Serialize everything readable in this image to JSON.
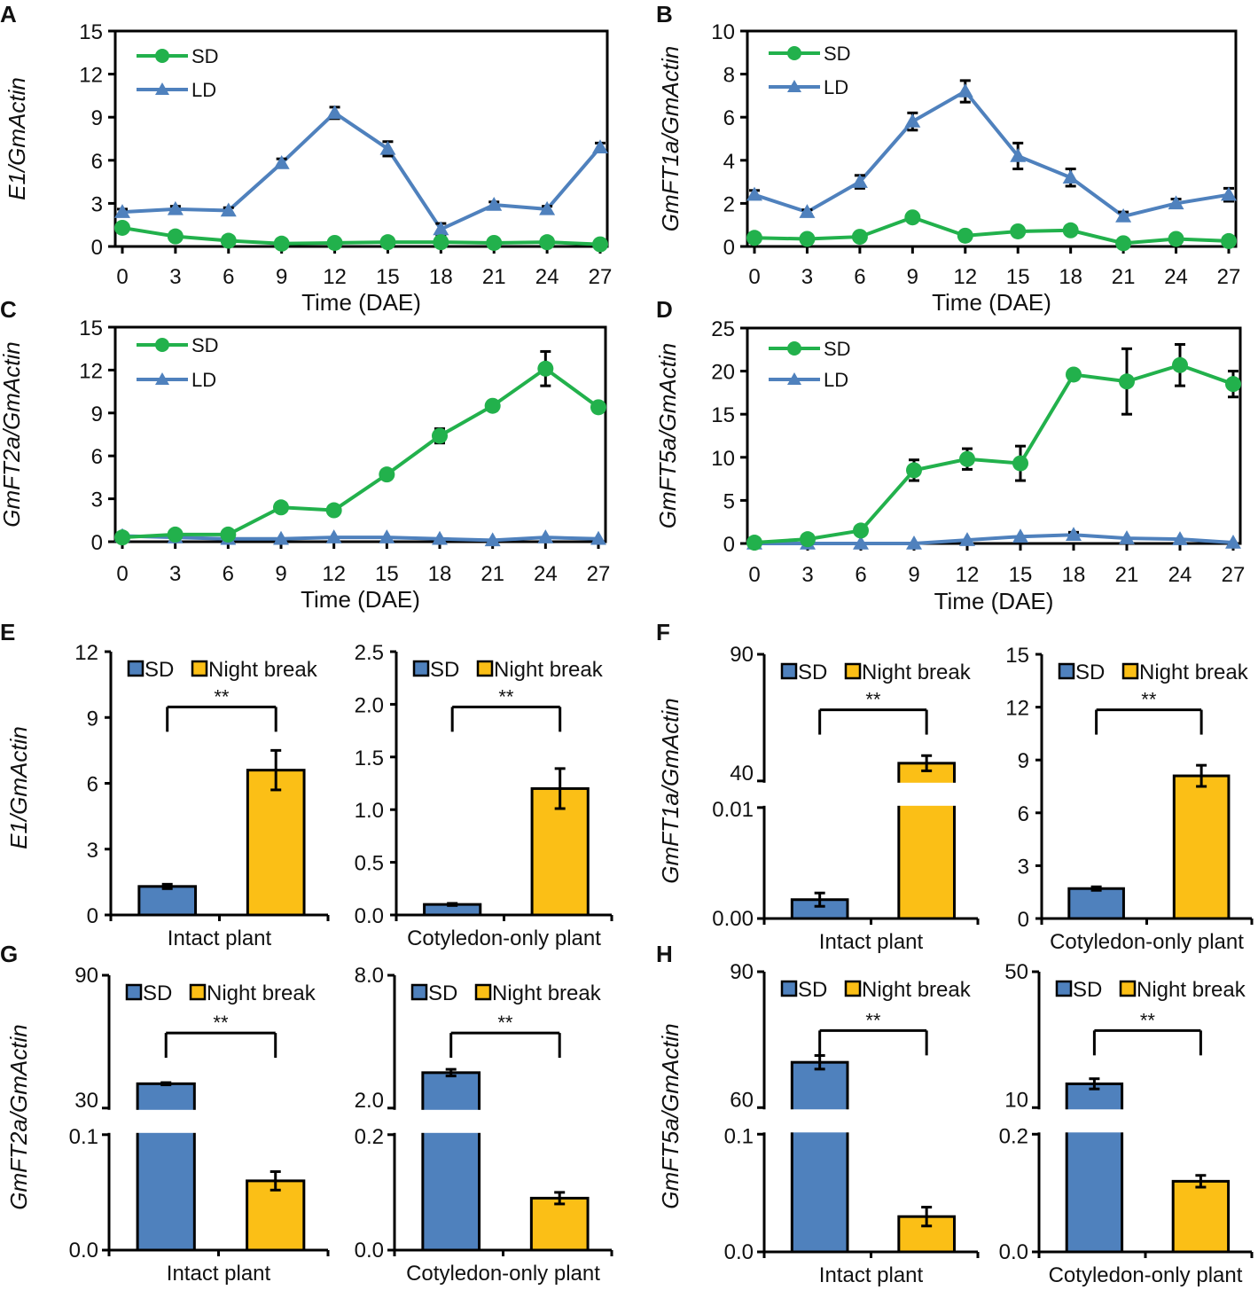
{
  "colors": {
    "sd_line": "#22b14c",
    "ld_line": "#4f81bd",
    "sd_bar": "#4f81bd",
    "nb_bar": "#fbbf16",
    "axis": "#000000"
  },
  "chart_data": [
    {
      "panel_letter": "A",
      "type": "line",
      "ylabel": "E1/GmActin",
      "xlabel": "Time (DAE)",
      "x": [
        0,
        3,
        6,
        9,
        12,
        15,
        18,
        21,
        24,
        27
      ],
      "ylim": [
        0,
        15
      ],
      "yticks": [
        "0",
        "3",
        "6",
        "9",
        "12",
        "15"
      ],
      "xticks": [
        "0",
        "3",
        "6",
        "9",
        "12",
        "15",
        "18",
        "21",
        "24",
        "27"
      ],
      "series": [
        {
          "name": "SD",
          "marker": "circle",
          "values": [
            1.3,
            0.7,
            0.4,
            0.2,
            0.25,
            0.3,
            0.3,
            0.25,
            0.3,
            0.15
          ],
          "errors": [
            0,
            0,
            0,
            0,
            0,
            0,
            0,
            0,
            0,
            0
          ]
        },
        {
          "name": "LD",
          "marker": "triangle",
          "values": [
            2.4,
            2.6,
            2.5,
            5.8,
            9.3,
            6.8,
            1.2,
            2.9,
            2.6,
            6.9
          ],
          "errors": [
            0.2,
            0.2,
            0.2,
            0.3,
            0.4,
            0.5,
            0.4,
            0.2,
            0.2,
            0.3
          ]
        }
      ]
    },
    {
      "panel_letter": "B",
      "type": "line",
      "ylabel": "GmFT1a/GmActin",
      "xlabel": "Time (DAE)",
      "x": [
        0,
        3,
        6,
        9,
        12,
        15,
        18,
        21,
        24,
        27
      ],
      "ylim": [
        0,
        10
      ],
      "yticks": [
        "0",
        "2",
        "4",
        "6",
        "8",
        "10"
      ],
      "xticks": [
        "0",
        "3",
        "6",
        "9",
        "12",
        "15",
        "18",
        "21",
        "24",
        "27"
      ],
      "series": [
        {
          "name": "SD",
          "marker": "circle",
          "values": [
            0.4,
            0.35,
            0.45,
            1.35,
            0.5,
            0.7,
            0.75,
            0.15,
            0.35,
            0.25
          ],
          "errors": [
            0,
            0,
            0,
            0,
            0,
            0,
            0,
            0,
            0,
            0
          ]
        },
        {
          "name": "LD",
          "marker": "triangle",
          "values": [
            2.4,
            1.6,
            3.0,
            5.8,
            7.2,
            4.2,
            3.2,
            1.4,
            2.0,
            2.4
          ],
          "errors": [
            0.2,
            0.1,
            0.3,
            0.4,
            0.5,
            0.6,
            0.4,
            0.2,
            0.2,
            0.3
          ]
        }
      ]
    },
    {
      "panel_letter": "C",
      "type": "line",
      "ylabel": "GmFT2a/GmActin",
      "xlabel": "Time (DAE)",
      "x": [
        0,
        3,
        6,
        9,
        12,
        15,
        18,
        21,
        24,
        27
      ],
      "ylim": [
        0,
        15
      ],
      "yticks": [
        "0",
        "3",
        "6",
        "9",
        "12",
        "15"
      ],
      "xticks": [
        "0",
        "3",
        "6",
        "9",
        "12",
        "15",
        "18",
        "21",
        "24",
        "27"
      ],
      "series": [
        {
          "name": "SD",
          "marker": "circle",
          "values": [
            0.3,
            0.5,
            0.5,
            2.4,
            2.2,
            4.7,
            7.4,
            9.5,
            12.1,
            9.4
          ],
          "errors": [
            0,
            0,
            0,
            0,
            0,
            0,
            0.5,
            0,
            1.2,
            0
          ]
        },
        {
          "name": "LD",
          "marker": "triangle",
          "values": [
            0.4,
            0.3,
            0.2,
            0.2,
            0.3,
            0.3,
            0.2,
            0.1,
            0.3,
            0.2
          ],
          "errors": [
            0,
            0,
            0,
            0,
            0,
            0,
            0,
            0,
            0,
            0
          ]
        }
      ]
    },
    {
      "panel_letter": "D",
      "type": "line",
      "ylabel": "GmFT5a/GmActin",
      "xlabel": "Time (DAE)",
      "x": [
        0,
        3,
        6,
        9,
        12,
        15,
        18,
        21,
        24,
        27
      ],
      "ylim": [
        0,
        25
      ],
      "yticks": [
        "0",
        "5",
        "10",
        "15",
        "20",
        "25"
      ],
      "xticks": [
        "0",
        "3",
        "6",
        "9",
        "12",
        "15",
        "18",
        "21",
        "24",
        "27"
      ],
      "series": [
        {
          "name": "SD",
          "marker": "circle",
          "values": [
            0.1,
            0.5,
            1.5,
            8.5,
            9.8,
            9.3,
            19.6,
            18.8,
            20.7,
            18.5
          ],
          "errors": [
            0,
            0,
            0,
            1.2,
            1.2,
            2.0,
            0,
            3.8,
            2.4,
            1.5
          ]
        },
        {
          "name": "LD",
          "marker": "triangle",
          "values": [
            0,
            0,
            0,
            0,
            0.4,
            0.8,
            1.0,
            0.6,
            0.5,
            0.1
          ],
          "errors": [
            0,
            0,
            0,
            0,
            0,
            0,
            0.3,
            0,
            0,
            0
          ]
        }
      ]
    }
  ],
  "bar_charts": [
    {
      "panel_letter": "E",
      "ylabel": "E1/GmActin",
      "legend": [
        "SD",
        "Night break"
      ],
      "significance": "**",
      "subcharts": [
        {
          "category": "Intact plant",
          "yticks": [
            "0",
            "3",
            "6",
            "9",
            "12"
          ],
          "ymax": 12,
          "values": [
            1.3,
            6.6
          ],
          "errors": [
            0.1,
            0.9
          ]
        },
        {
          "category": "Cotyledon-only plant",
          "yticks": [
            "0.0",
            "0.5",
            "1.0",
            "1.5",
            "2.0",
            "2.5"
          ],
          "ymax": 2.5,
          "values": [
            0.1,
            1.2
          ],
          "errors": [
            0.01,
            0.19
          ]
        }
      ]
    },
    {
      "panel_letter": "F",
      "ylabel": "GmFT1a/GmActin",
      "legend": [
        "SD",
        "Night break"
      ],
      "significance": "**",
      "subcharts": [
        {
          "category": "Intact plant",
          "broken": true,
          "yticks_low": [
            "0.00",
            "0.01"
          ],
          "yticks_high": [
            "40",
            "90"
          ],
          "values": [
            0.0017,
            47
          ],
          "errors": [
            0.0006,
            3
          ]
        },
        {
          "category": "Cotyledon-only plant",
          "yticks": [
            "0",
            "3",
            "6",
            "9",
            "12",
            "15"
          ],
          "ymax": 15,
          "values": [
            1.7,
            8.1
          ],
          "errors": [
            0.1,
            0.6
          ]
        }
      ]
    },
    {
      "panel_letter": "G",
      "ylabel": "GmFT2a/GmActin",
      "legend": [
        "SD",
        "Night break"
      ],
      "significance": "**",
      "subcharts": [
        {
          "category": "Intact plant",
          "broken": true,
          "yticks_low": [
            "0.0",
            "0.1"
          ],
          "yticks_high": [
            "30",
            "90"
          ],
          "values": [
            41,
            0.06
          ],
          "errors": [
            0.5,
            0.008
          ]
        },
        {
          "category": "Cotyledon-only plant",
          "broken": true,
          "yticks_low": [
            "0.0",
            "0.2"
          ],
          "yticks_high": [
            "2.0",
            "8.0"
          ],
          "values": [
            3.6,
            0.09
          ],
          "errors": [
            0.15,
            0.01
          ]
        }
      ]
    },
    {
      "panel_letter": "H",
      "ylabel": "GmFT5a/GmActin",
      "legend": [
        "SD",
        "Night break"
      ],
      "significance": "**",
      "subcharts": [
        {
          "category": "Intact plant",
          "broken": true,
          "yticks_low": [
            "0.0",
            "0.1"
          ],
          "yticks_high": [
            "60",
            "90"
          ],
          "values": [
            70,
            0.03
          ],
          "errors": [
            1.5,
            0.008
          ]
        },
        {
          "category": "Cotyledon-only plant",
          "broken": true,
          "yticks_low": [
            "0.0",
            "0.2"
          ],
          "yticks_high": [
            "10",
            "50"
          ],
          "values": [
            17,
            0.12
          ],
          "errors": [
            1.5,
            0.01
          ]
        }
      ]
    }
  ]
}
